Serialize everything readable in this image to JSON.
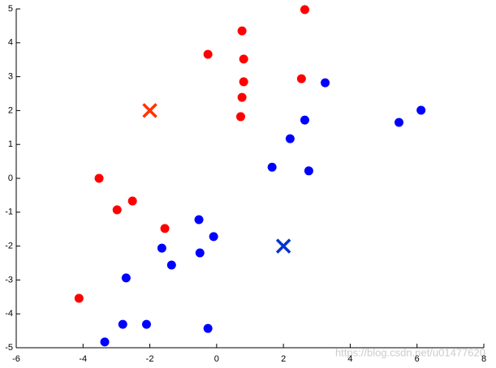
{
  "chart_data": {
    "type": "scatter",
    "xlim": [
      -6,
      8
    ],
    "xticks": [
      -6,
      -4,
      -2,
      0,
      2,
      4,
      6,
      8
    ],
    "ylim": [
      -5,
      5
    ],
    "yticks": [
      -5,
      -4,
      -3,
      -2,
      -1,
      0,
      1,
      2,
      3,
      4,
      5
    ],
    "annotation": "https://blog.csdn.net/u01477620",
    "series": [
      {
        "color": "#ff0000",
        "marker": "o",
        "x": [
          2.64,
          0.76,
          -0.26,
          0.81,
          0.81,
          2.54,
          0.76,
          0.72,
          -3.52,
          -2.52,
          -2.98,
          -1.55,
          -4.12
        ],
        "values": [
          4.98,
          4.35,
          3.66,
          3.52,
          2.85,
          2.94,
          2.39,
          1.82,
          0,
          -0.67,
          -0.93,
          -1.48,
          -3.54
        ]
      },
      {
        "color": "#0000ff",
        "marker": "o",
        "x": [
          3.25,
          6.12,
          5.46,
          2.64,
          2.2,
          1.66,
          2.76,
          -0.53,
          -0.09,
          -1.64,
          -0.5,
          -1.35,
          -2.71,
          -2.81,
          -2.1,
          -0.26,
          -3.35
        ],
        "values": [
          2.82,
          2.01,
          1.65,
          1.72,
          1.17,
          0.33,
          0.22,
          -1.22,
          -1.72,
          -2.06,
          -2.2,
          -2.56,
          -2.94,
          -4.31,
          -4.31,
          -4.43,
          -4.83
        ]
      },
      {
        "color": "#ff3300",
        "marker": "x",
        "x": [
          -2
        ],
        "values": [
          2
        ]
      },
      {
        "color": "#0033cc",
        "marker": "x",
        "x": [
          2
        ],
        "values": [
          -2
        ]
      }
    ]
  }
}
